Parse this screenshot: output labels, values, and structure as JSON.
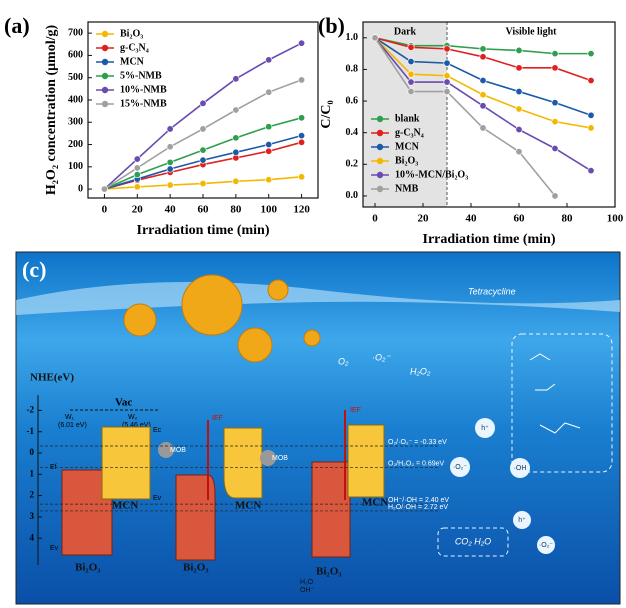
{
  "chart_data": [
    {
      "type": "line",
      "panel_label": "(a)",
      "x_label": "Irradiation time (min)",
      "y_label": "H₂O₂ concentration (μmol/g)",
      "x": [
        0,
        20,
        40,
        60,
        80,
        100,
        120
      ],
      "xlim": [
        -10,
        130
      ],
      "xticks": [
        0,
        20,
        40,
        60,
        80,
        100,
        120
      ],
      "ylim": [
        -40,
        750
      ],
      "yticks": [
        0,
        100,
        200,
        300,
        400,
        500,
        600,
        700
      ],
      "legend": "top-left",
      "series": [
        {
          "name": "Bi₂O₃",
          "color": "#f5b800",
          "values": [
            0,
            10,
            18,
            25,
            35,
            42,
            55
          ]
        },
        {
          "name": "g-C₃N₄",
          "color": "#e02020",
          "values": [
            0,
            40,
            75,
            110,
            140,
            170,
            210
          ]
        },
        {
          "name": "MCN",
          "color": "#1a5aa8",
          "values": [
            0,
            45,
            90,
            130,
            165,
            200,
            240
          ]
        },
        {
          "name": "5%-NMB",
          "color": "#2e9e4f",
          "values": [
            0,
            65,
            120,
            175,
            230,
            280,
            320
          ]
        },
        {
          "name": "10%-NMB",
          "color": "#6a4bb0",
          "values": [
            0,
            135,
            270,
            385,
            495,
            580,
            655
          ]
        },
        {
          "name": "15%-NMB",
          "color": "#a0a0a0",
          "values": [
            0,
            95,
            190,
            270,
            355,
            435,
            490
          ]
        }
      ]
    },
    {
      "type": "line",
      "panel_label": "(b)",
      "x_label": "Irradiation time (min)",
      "y_label": "C/C₀",
      "dark_label": "Dark",
      "light_label": "Visible light",
      "dark_until": 30,
      "x": [
        0,
        15,
        30,
        45,
        60,
        75,
        90
      ],
      "xlim": [
        -5,
        100
      ],
      "xticks": [
        0,
        20,
        40,
        60,
        80,
        100
      ],
      "ylim": [
        -0.07,
        1.1
      ],
      "yticks": [
        {
          "value": 0,
          "label": "0.0"
        },
        {
          "value": 0.2,
          "label": "0.2"
        },
        {
          "value": 0.4,
          "label": "0.4"
        },
        {
          "value": 0.6,
          "label": "0.6"
        },
        {
          "value": 0.8,
          "label": "0.8"
        },
        {
          "value": 1,
          "label": "1.0"
        }
      ],
      "legend": "bottom-left",
      "series": [
        {
          "name": "blank",
          "color": "#2e9e4f",
          "values": [
            1.0,
            0.95,
            0.95,
            0.93,
            0.92,
            0.9,
            0.9
          ]
        },
        {
          "name": "g-C₃N₄",
          "color": "#e02020",
          "values": [
            1.0,
            0.94,
            0.93,
            0.88,
            0.81,
            0.81,
            0.73
          ]
        },
        {
          "name": "MCN",
          "color": "#1a5aa8",
          "values": [
            1.0,
            0.85,
            0.84,
            0.73,
            0.66,
            0.59,
            0.51
          ]
        },
        {
          "name": "Bi₂O₃",
          "color": "#f5b800",
          "values": [
            1.0,
            0.77,
            0.76,
            0.64,
            0.55,
            0.47,
            0.43
          ]
        },
        {
          "name": "10%-MCN/Bi₂O₃",
          "color": "#6a4bb0",
          "values": [
            1.0,
            0.72,
            0.72,
            0.57,
            0.42,
            0.3,
            0.16
          ]
        },
        {
          "name": "NMB",
          "color": "#a0a0a0",
          "values": [
            1.0,
            0.66,
            0.66,
            0.43,
            0.28,
            0.0,
            null
          ]
        }
      ]
    }
  ],
  "panel_c": {
    "label": "(c)",
    "axis_label": "NHE(eV)",
    "axis_ticks": [
      -2,
      -1,
      0,
      1,
      2,
      3,
      4
    ],
    "vac": "Vac",
    "w1": "W₁",
    "w1_value": "(6.01 eV)",
    "w2": "W₂",
    "w2_value": "(5.46 eV)",
    "bi": "Bi₂O₃",
    "mcn": "MCN",
    "mob": "MOB",
    "ief": "IEF",
    "ef": "Ef",
    "ec": "Ec",
    "ev": "Ev",
    "potentials": [
      "O₂/·O₂⁻ = -0.33 eV",
      "O₂/H₂O₂ = 0.69eV",
      "OH⁻/·OH = 2.40 eV",
      "H₂O/·OH = 2.72 eV"
    ],
    "o2": "O₂",
    "o2r": "·O₂⁻",
    "h2o2": "H₂O₂",
    "h2o": "H₂O",
    "ohm": "OH⁻",
    "oh": "·OH",
    "hole": "h⁺",
    "pollutant": "Tetracycline",
    "products": "CO₂  H₂O"
  }
}
